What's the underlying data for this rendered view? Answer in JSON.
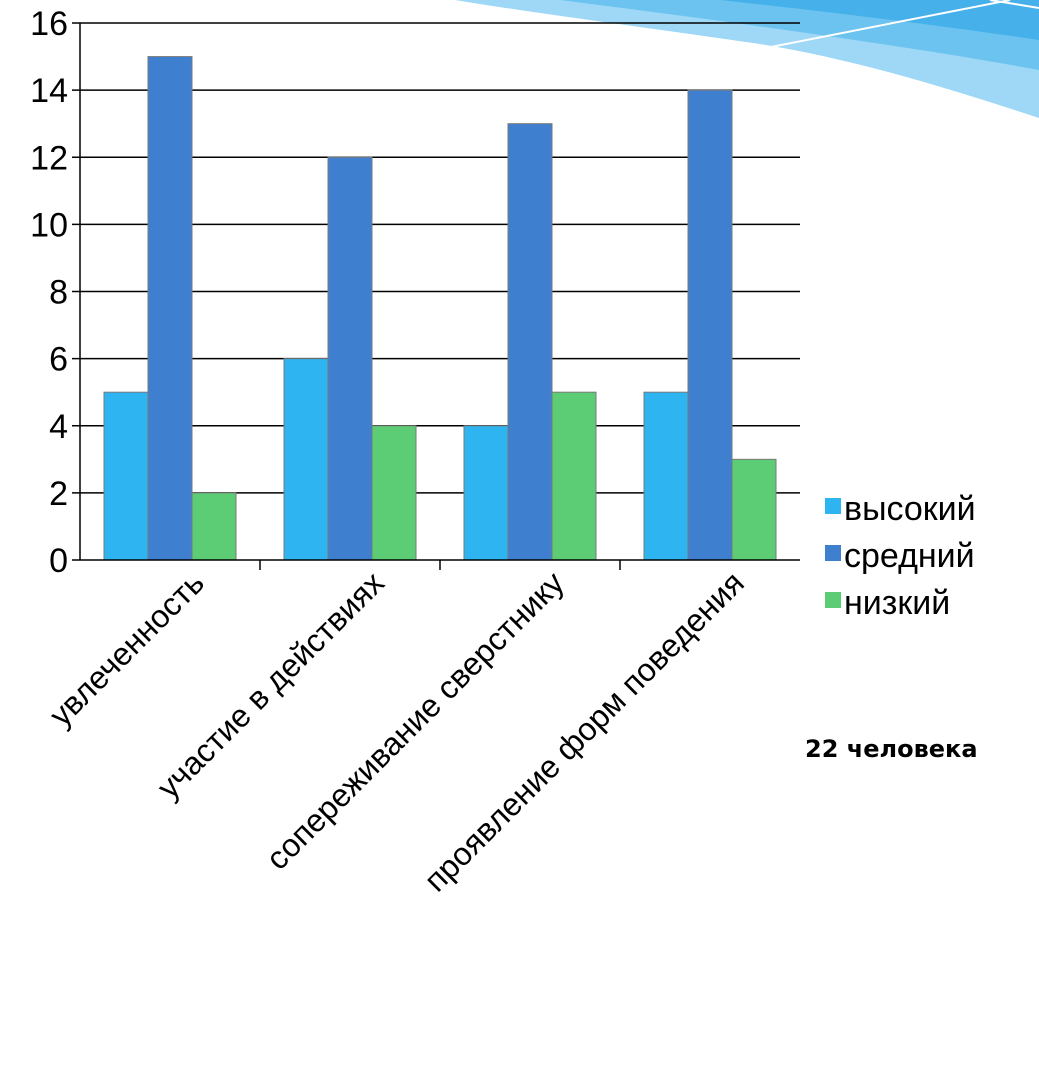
{
  "chart_data": {
    "type": "bar",
    "categories": [
      "увлеченность",
      "участие в действиях",
      "сопереживание сверстнику",
      "проявление форм поведения"
    ],
    "series": [
      {
        "name": "высокий",
        "values": [
          5,
          6,
          4,
          5
        ],
        "color": "#2eb4f0"
      },
      {
        "name": "средний",
        "values": [
          15,
          12,
          13,
          14
        ],
        "color": "#3f7fd0"
      },
      {
        "name": "низкий",
        "values": [
          2,
          4,
          5,
          3
        ],
        "color": "#5ccc75"
      }
    ],
    "ylim": [
      0,
      16
    ],
    "yticks": [
      0,
      2,
      4,
      6,
      8,
      10,
      12,
      14,
      16
    ],
    "grid": true,
    "legend": "right",
    "title": "",
    "xlabel": "",
    "ylabel": ""
  },
  "note": "22 человека"
}
